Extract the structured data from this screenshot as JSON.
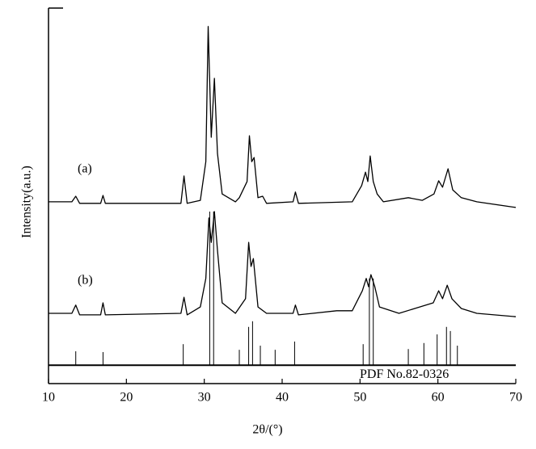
{
  "chart_data": {
    "type": "line",
    "xlabel": "2θ/(°)",
    "ylabel": "Intensity(a.u.)",
    "xlim": [
      10,
      70
    ],
    "xticks": [
      10,
      20,
      30,
      40,
      50,
      60,
      70
    ],
    "ylim": [
      0,
      100
    ],
    "series": [
      {
        "name": "(a)",
        "color": "#000000",
        "x": [
          10,
          13,
          13.5,
          14,
          16.7,
          17,
          17.3,
          27,
          27.4,
          27.8,
          29.5,
          30.2,
          30.5,
          30.9,
          31.3,
          31.7,
          32.3,
          34,
          34.5,
          35.5,
          35.8,
          36.1,
          36.4,
          36.9,
          37.5,
          38,
          41.4,
          41.7,
          42.1,
          49,
          50.2,
          50.7,
          51.0,
          51.3,
          51.7,
          52.2,
          53,
          56.2,
          58,
          59.5,
          60.1,
          60.6,
          61.3,
          61.9,
          63,
          65,
          70
        ],
        "values": [
          48.4,
          48.4,
          49.9,
          48.0,
          48.0,
          50.1,
          48.0,
          48.0,
          55.3,
          48.0,
          48.8,
          59.1,
          95.1,
          65.6,
          81.3,
          61.3,
          50.5,
          48.4,
          49.5,
          53.8,
          66.0,
          59.1,
          60.2,
          49.5,
          49.9,
          48.0,
          48.4,
          51.0,
          48.0,
          48.4,
          52.7,
          56.3,
          53.8,
          60.6,
          53.8,
          50.5,
          48.4,
          49.5,
          48.8,
          50.5,
          54.0,
          52.3,
          57.2,
          51.6,
          49.5,
          48.4,
          46.9
        ]
      },
      {
        "name": "(b)",
        "color": "#000000",
        "x": [
          10,
          13,
          13.5,
          14,
          16.7,
          17,
          17.3,
          27,
          27.4,
          27.8,
          29.5,
          30.2,
          30.6,
          30.9,
          31.3,
          31.7,
          32.3,
          34,
          35.3,
          35.7,
          36.0,
          36.3,
          36.9,
          38,
          41.4,
          41.7,
          42.1,
          47,
          49,
          50.3,
          50.8,
          51.1,
          51.4,
          51.9,
          52.5,
          55,
          59.4,
          60.1,
          60.6,
          61.2,
          61.8,
          63,
          65,
          70
        ],
        "values": [
          18.7,
          18.7,
          20.9,
          18.3,
          18.3,
          21.5,
          18.3,
          18.7,
          23.0,
          18.3,
          20.4,
          28.0,
          44.1,
          37.6,
          45.8,
          35.5,
          21.5,
          18.7,
          22.6,
          37.6,
          31.2,
          33.3,
          20.4,
          18.7,
          18.7,
          20.9,
          18.3,
          19.4,
          19.4,
          24.7,
          28.0,
          25.8,
          29.0,
          25.8,
          20.4,
          18.7,
          21.5,
          24.7,
          22.6,
          26.2,
          22.6,
          20.0,
          18.7,
          17.8
        ]
      }
    ],
    "reference": {
      "name": "PDF No.82-0326",
      "baseline": 4.9,
      "x": [
        13.5,
        17,
        27.3,
        30.7,
        31.2,
        34.5,
        35.7,
        36.2,
        37.2,
        39.1,
        41.6,
        50.4,
        51.2,
        51.7,
        56.2,
        58.2,
        59.9,
        61.1,
        61.6,
        62.5
      ],
      "values": [
        8.6,
        8.4,
        10.5,
        45.8,
        45.8,
        9.0,
        15.1,
        16.6,
        10.1,
        9.0,
        11.2,
        10.5,
        28.0,
        28.0,
        9.2,
        10.8,
        13.1,
        15.1,
        14.0,
        10.1
      ]
    }
  }
}
